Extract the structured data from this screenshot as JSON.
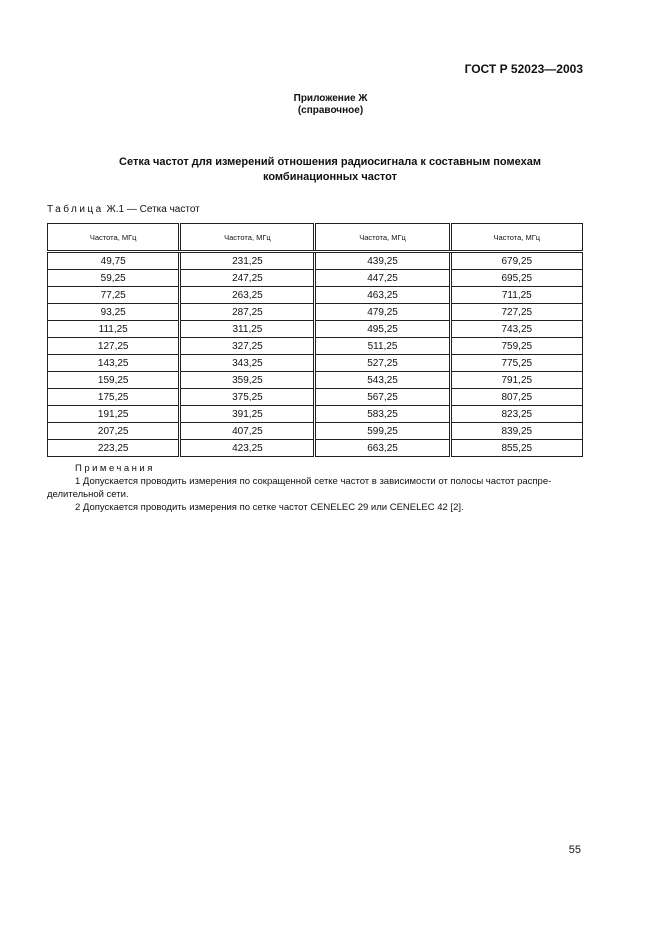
{
  "header": {
    "standard": "ГОСТ Р 52023—2003"
  },
  "appendix": {
    "title": "Приложение Ж",
    "kind": "(справочное)"
  },
  "section_title": {
    "line1": "Сетка частот для измерений отношения радиосигнала к составным помехам",
    "line2": "комбинационных частот"
  },
  "table": {
    "caption_prefix": "Таблица",
    "caption_rest": " Ж.1 — Сетка частот",
    "headers": [
      "Частота, МГц",
      "Частота, МГц",
      "Частота, МГц",
      "Частота, МГц"
    ],
    "rows": [
      [
        "49,75",
        "231,25",
        "439,25",
        "679,25"
      ],
      [
        "59,25",
        "247,25",
        "447,25",
        "695,25"
      ],
      [
        "77,25",
        "263,25",
        "463,25",
        "711,25"
      ],
      [
        "93,25",
        "287,25",
        "479,25",
        "727,25"
      ],
      [
        "111,25",
        "311,25",
        "495,25",
        "743,25"
      ],
      [
        "127,25",
        "327,25",
        "511,25",
        "759,25"
      ],
      [
        "143,25",
        "343,25",
        "527,25",
        "775,25"
      ],
      [
        "159,25",
        "359,25",
        "543,25",
        "791,25"
      ],
      [
        "175,25",
        "375,25",
        "567,25",
        "807,25"
      ],
      [
        "191,25",
        "391,25",
        "583,25",
        "823,25"
      ],
      [
        "207,25",
        "407,25",
        "599,25",
        "839,25"
      ],
      [
        "223,25",
        "423,25",
        "663,25",
        "855,25"
      ]
    ]
  },
  "notes": {
    "heading": "Примечания",
    "items": [
      "1 Допускается проводить измерения по сокращенной сетке частот в зависимости от полосы частот распре-делительной сети.",
      "2 Допускается проводить измерения по сетке частот CENELEC 29 или CENELEC 42 [2]."
    ]
  },
  "page_number": "55"
}
